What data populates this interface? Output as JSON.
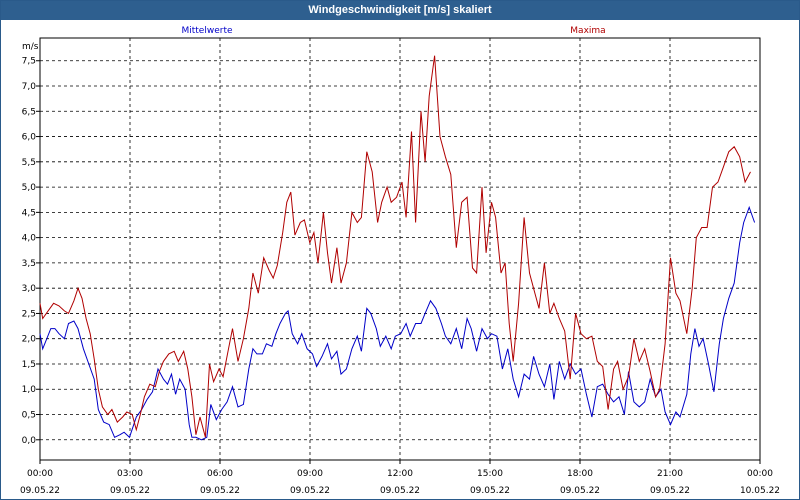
{
  "window": {
    "title": "Windgeschwindigkeit [m/s] skaliert"
  },
  "colors": {
    "titlebar": "#2e5f8f",
    "series_mean": "#0000c8",
    "series_max": "#b00000",
    "grid": "#000000"
  },
  "chart_data": {
    "type": "line",
    "title": "Windgeschwindigkeit [m/s] skaliert",
    "ylabel": "m/s",
    "xlabel": "",
    "ylim": [
      -0.4,
      7.95
    ],
    "yticks": [
      "0,0",
      "0,5",
      "1,0",
      "1,5",
      "2,0",
      "2,5",
      "3,0",
      "3,5",
      "4,0",
      "4,5",
      "5,0",
      "5,5",
      "6,0",
      "6,5",
      "7,0",
      "7,5"
    ],
    "x_range_hours": [
      0,
      24
    ],
    "xticks": [
      {
        "time": "00:00",
        "date": "09.05.22"
      },
      {
        "time": "03:00",
        "date": "09.05.22"
      },
      {
        "time": "06:00",
        "date": "09.05.22"
      },
      {
        "time": "09:00",
        "date": "09.05.22"
      },
      {
        "time": "12:00",
        "date": "09.05.22"
      },
      {
        "time": "15:00",
        "date": "09.05.22"
      },
      {
        "time": "18:00",
        "date": "09.05.22"
      },
      {
        "time": "21:00",
        "date": "09.05.22"
      },
      {
        "time": "00:00",
        "date": "10.05.22"
      }
    ],
    "grid": true,
    "legend": "top",
    "series": [
      {
        "name": "Mittelwerte",
        "color": "#0000c8",
        "points": [
          [
            0.0,
            2.1
          ],
          [
            0.1,
            1.8
          ],
          [
            0.25,
            2.0
          ],
          [
            0.4,
            2.2
          ],
          [
            0.55,
            2.2
          ],
          [
            0.7,
            2.1
          ],
          [
            0.9,
            2.0
          ],
          [
            1.05,
            2.3
          ],
          [
            1.25,
            2.35
          ],
          [
            1.4,
            2.2
          ],
          [
            1.6,
            1.8
          ],
          [
            1.8,
            1.5
          ],
          [
            2.0,
            1.2
          ],
          [
            2.15,
            0.6
          ],
          [
            2.35,
            0.35
          ],
          [
            2.55,
            0.3
          ],
          [
            2.75,
            0.05
          ],
          [
            2.95,
            0.1
          ],
          [
            3.1,
            0.15
          ],
          [
            3.3,
            0.05
          ],
          [
            3.55,
            0.45
          ],
          [
            3.75,
            0.6
          ],
          [
            3.95,
            0.8
          ],
          [
            4.15,
            0.95
          ],
          [
            4.35,
            1.4
          ],
          [
            4.55,
            1.2
          ],
          [
            4.7,
            1.1
          ],
          [
            4.85,
            1.3
          ],
          [
            5.0,
            0.9
          ],
          [
            5.15,
            1.2
          ],
          [
            5.35,
            1.0
          ],
          [
            5.5,
            0.3
          ],
          [
            5.6,
            0.05
          ],
          [
            5.75,
            0.05
          ],
          [
            5.95,
            0.0
          ],
          [
            6.15,
            0.05
          ],
          [
            6.3,
            0.7
          ],
          [
            6.5,
            0.4
          ],
          [
            6.7,
            0.6
          ],
          [
            6.9,
            0.75
          ],
          [
            7.1,
            1.05
          ],
          [
            7.3,
            0.65
          ],
          [
            7.5,
            0.7
          ],
          [
            7.7,
            1.4
          ],
          [
            7.85,
            1.8
          ],
          [
            8.0,
            1.7
          ],
          [
            8.2,
            1.7
          ],
          [
            8.35,
            1.9
          ],
          [
            8.55,
            1.85
          ],
          [
            8.7,
            2.1
          ],
          [
            8.85,
            2.3
          ],
          [
            9.05,
            2.5
          ],
          [
            9.15,
            2.55
          ],
          [
            9.3,
            2.1
          ],
          [
            9.5,
            1.9
          ],
          [
            9.65,
            2.1
          ],
          [
            9.85,
            1.8
          ],
          [
            10.05,
            1.7
          ],
          [
            10.2,
            1.45
          ],
          [
            10.4,
            1.65
          ],
          [
            10.6,
            1.9
          ],
          [
            10.75,
            1.6
          ],
          [
            10.95,
            1.75
          ],
          [
            11.1,
            1.3
          ],
          [
            11.3,
            1.4
          ],
          [
            11.5,
            1.8
          ],
          [
            11.7,
            2.05
          ],
          [
            11.85,
            1.75
          ],
          [
            12.05,
            2.6
          ],
          [
            12.2,
            2.5
          ],
          [
            12.4,
            2.2
          ],
          [
            12.55,
            1.85
          ],
          [
            12.75,
            2.05
          ],
          [
            12.95,
            1.8
          ],
          [
            13.1,
            2.05
          ],
          [
            13.3,
            2.1
          ],
          [
            13.5,
            2.3
          ],
          [
            13.65,
            2.05
          ],
          [
            13.85,
            2.3
          ],
          [
            14.05,
            2.3
          ],
          [
            14.2,
            2.5
          ],
          [
            14.4,
            2.75
          ],
          [
            14.6,
            2.6
          ],
          [
            14.8,
            2.3
          ],
          [
            14.95,
            2.05
          ],
          [
            15.15,
            1.9
          ],
          [
            15.35,
            2.2
          ],
          [
            15.55,
            1.8
          ],
          [
            15.75,
            2.4
          ],
          [
            15.9,
            2.2
          ],
          [
            16.1,
            1.75
          ],
          [
            16.3,
            2.2
          ],
          [
            16.5,
            2.0
          ],
          [
            16.65,
            2.1
          ],
          [
            16.85,
            2.05
          ],
          [
            17.05,
            1.4
          ],
          [
            17.25,
            1.8
          ],
          [
            17.45,
            1.2
          ],
          [
            17.65,
            0.85
          ],
          [
            17.85,
            1.3
          ],
          [
            18.05,
            1.2
          ],
          [
            18.2,
            1.65
          ],
          [
            18.4,
            1.3
          ],
          [
            18.6,
            1.05
          ],
          [
            18.8,
            1.5
          ],
          [
            18.95,
            0.8
          ],
          [
            19.15,
            1.55
          ],
          [
            19.35,
            1.2
          ],
          [
            19.55,
            1.5
          ],
          [
            19.75,
            1.3
          ],
          [
            19.95,
            1.4
          ],
          [
            20.15,
            0.9
          ],
          [
            20.35,
            0.45
          ],
          [
            20.55,
            1.05
          ],
          [
            20.75,
            1.1
          ],
          [
            20.95,
            0.9
          ],
          [
            21.15,
            0.75
          ],
          [
            21.35,
            0.85
          ],
          [
            21.55,
            0.5
          ],
          [
            21.7,
            1.35
          ],
          [
            21.9,
            0.75
          ],
          [
            22.1,
            0.65
          ],
          [
            22.3,
            0.75
          ],
          [
            22.5,
            1.2
          ],
          [
            22.7,
            0.85
          ],
          [
            22.9,
            1.0
          ],
          [
            23.05,
            0.55
          ],
          [
            23.25,
            0.3
          ],
          [
            23.45,
            0.55
          ],
          [
            23.6,
            0.45
          ],
          [
            23.85,
            0.9
          ],
          [
            24.0,
            1.7
          ],
          [
            24.15,
            2.2
          ],
          [
            24.3,
            1.85
          ],
          [
            24.45,
            2.0
          ],
          [
            24.65,
            1.5
          ],
          [
            24.85,
            0.95
          ],
          [
            25.05,
            1.9
          ],
          [
            25.2,
            2.4
          ],
          [
            25.4,
            2.8
          ],
          [
            25.6,
            3.1
          ],
          [
            25.8,
            3.9
          ],
          [
            25.95,
            4.3
          ],
          [
            26.15,
            4.6
          ],
          [
            26.35,
            4.3
          ]
        ]
      },
      {
        "name": "Maxima",
        "color": "#b00000",
        "points": [
          [
            0.0,
            2.7
          ],
          [
            0.1,
            2.4
          ],
          [
            0.3,
            2.55
          ],
          [
            0.5,
            2.7
          ],
          [
            0.7,
            2.65
          ],
          [
            0.9,
            2.55
          ],
          [
            1.05,
            2.5
          ],
          [
            1.25,
            2.75
          ],
          [
            1.4,
            3.0
          ],
          [
            1.55,
            2.8
          ],
          [
            1.7,
            2.4
          ],
          [
            1.85,
            2.1
          ],
          [
            2.0,
            1.6
          ],
          [
            2.15,
            1.0
          ],
          [
            2.3,
            0.65
          ],
          [
            2.5,
            0.5
          ],
          [
            2.65,
            0.6
          ],
          [
            2.85,
            0.35
          ],
          [
            3.05,
            0.45
          ],
          [
            3.2,
            0.55
          ],
          [
            3.4,
            0.5
          ],
          [
            3.55,
            0.2
          ],
          [
            3.7,
            0.5
          ],
          [
            3.85,
            0.85
          ],
          [
            4.05,
            1.1
          ],
          [
            4.25,
            1.05
          ],
          [
            4.4,
            1.35
          ],
          [
            4.55,
            1.55
          ],
          [
            4.75,
            1.7
          ],
          [
            4.95,
            1.75
          ],
          [
            5.1,
            1.55
          ],
          [
            5.3,
            1.75
          ],
          [
            5.45,
            1.4
          ],
          [
            5.6,
            0.85
          ],
          [
            5.75,
            0.1
          ],
          [
            5.9,
            0.45
          ],
          [
            6.1,
            0.05
          ],
          [
            6.25,
            1.5
          ],
          [
            6.4,
            1.15
          ],
          [
            6.6,
            1.4
          ],
          [
            6.75,
            1.25
          ],
          [
            6.95,
            1.8
          ],
          [
            7.1,
            2.2
          ],
          [
            7.3,
            1.55
          ],
          [
            7.5,
            2.0
          ],
          [
            7.7,
            2.6
          ],
          [
            7.85,
            3.3
          ],
          [
            8.05,
            2.9
          ],
          [
            8.25,
            3.6
          ],
          [
            8.45,
            3.35
          ],
          [
            8.6,
            3.2
          ],
          [
            8.75,
            3.45
          ],
          [
            8.95,
            4.1
          ],
          [
            9.1,
            4.7
          ],
          [
            9.25,
            4.9
          ],
          [
            9.4,
            4.05
          ],
          [
            9.6,
            4.3
          ],
          [
            9.75,
            4.35
          ],
          [
            9.95,
            3.9
          ],
          [
            10.1,
            4.1
          ],
          [
            10.25,
            3.5
          ],
          [
            10.45,
            4.5
          ],
          [
            10.6,
            3.7
          ],
          [
            10.75,
            3.1
          ],
          [
            10.95,
            3.8
          ],
          [
            11.1,
            3.1
          ],
          [
            11.3,
            3.5
          ],
          [
            11.5,
            4.5
          ],
          [
            11.7,
            4.3
          ],
          [
            11.85,
            4.4
          ],
          [
            12.05,
            5.7
          ],
          [
            12.25,
            5.3
          ],
          [
            12.45,
            4.3
          ],
          [
            12.6,
            4.7
          ],
          [
            12.8,
            5.0
          ],
          [
            12.95,
            4.7
          ],
          [
            13.15,
            4.8
          ],
          [
            13.35,
            5.1
          ],
          [
            13.5,
            4.4
          ],
          [
            13.7,
            6.1
          ],
          [
            13.85,
            4.3
          ],
          [
            14.05,
            6.5
          ],
          [
            14.2,
            5.5
          ],
          [
            14.35,
            6.8
          ],
          [
            14.55,
            7.6
          ],
          [
            14.75,
            6.0
          ],
          [
            14.95,
            5.6
          ],
          [
            15.15,
            5.25
          ],
          [
            15.35,
            3.8
          ],
          [
            15.55,
            4.7
          ],
          [
            15.75,
            4.8
          ],
          [
            15.95,
            3.4
          ],
          [
            16.1,
            3.3
          ],
          [
            16.3,
            5.0
          ],
          [
            16.45,
            3.7
          ],
          [
            16.65,
            4.7
          ],
          [
            16.8,
            4.4
          ],
          [
            17.0,
            3.3
          ],
          [
            17.15,
            3.5
          ],
          [
            17.3,
            2.3
          ],
          [
            17.45,
            1.55
          ],
          [
            17.65,
            2.7
          ],
          [
            17.85,
            4.4
          ],
          [
            18.05,
            3.3
          ],
          [
            18.25,
            2.9
          ],
          [
            18.4,
            2.6
          ],
          [
            18.6,
            3.5
          ],
          [
            18.8,
            2.5
          ],
          [
            18.95,
            2.7
          ],
          [
            19.15,
            2.4
          ],
          [
            19.35,
            2.15
          ],
          [
            19.55,
            1.2
          ],
          [
            19.75,
            2.5
          ],
          [
            19.95,
            2.1
          ],
          [
            20.15,
            2.0
          ],
          [
            20.35,
            2.05
          ],
          [
            20.55,
            1.55
          ],
          [
            20.75,
            1.45
          ],
          [
            20.95,
            0.6
          ],
          [
            21.15,
            1.4
          ],
          [
            21.3,
            1.55
          ],
          [
            21.5,
            1.0
          ],
          [
            21.7,
            1.25
          ],
          [
            21.9,
            2.0
          ],
          [
            22.1,
            1.55
          ],
          [
            22.3,
            1.8
          ],
          [
            22.5,
            1.35
          ],
          [
            22.7,
            0.85
          ],
          [
            22.85,
            1.0
          ],
          [
            23.05,
            1.9
          ],
          [
            23.25,
            3.6
          ],
          [
            23.45,
            2.9
          ],
          [
            23.6,
            2.75
          ],
          [
            23.85,
            2.1
          ],
          [
            24.05,
            3.0
          ],
          [
            24.2,
            4.0
          ],
          [
            24.4,
            4.2
          ],
          [
            24.6,
            4.2
          ],
          [
            24.8,
            5.0
          ],
          [
            25.0,
            5.1
          ],
          [
            25.2,
            5.4
          ],
          [
            25.4,
            5.7
          ],
          [
            25.6,
            5.8
          ],
          [
            25.8,
            5.6
          ],
          [
            26.0,
            5.1
          ],
          [
            26.2,
            5.3
          ]
        ]
      }
    ]
  }
}
